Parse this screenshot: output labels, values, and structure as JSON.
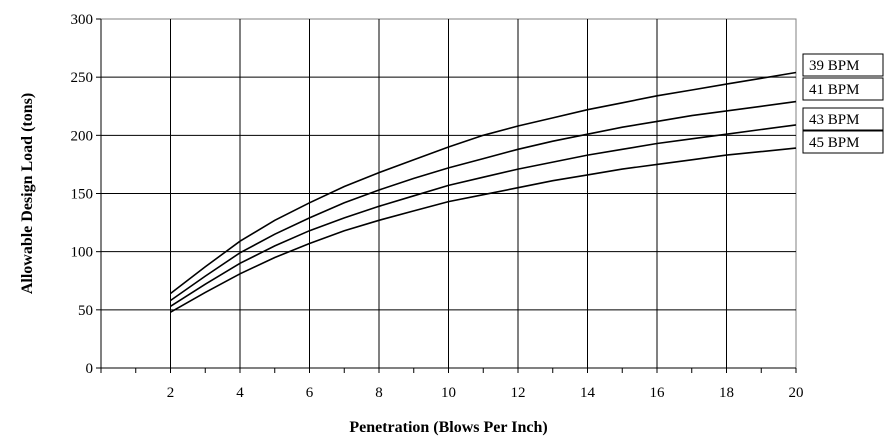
{
  "chart_data": {
    "type": "line",
    "xlabel": "Penetration (Blows Per Inch)",
    "ylabel": "Allowable Design Load (tons)",
    "xlim": [
      0,
      20
    ],
    "ylim": [
      0,
      300
    ],
    "xticks": [
      2,
      4,
      6,
      8,
      10,
      12,
      14,
      16,
      18,
      20
    ],
    "yticks": [
      0,
      50,
      100,
      150,
      200,
      250,
      300
    ],
    "grid": true,
    "legend": "right",
    "x": [
      2,
      3,
      4,
      5,
      6,
      7,
      8,
      9,
      10,
      11,
      12,
      13,
      14,
      15,
      16,
      17,
      18,
      19,
      20
    ],
    "series": [
      {
        "name": "39 BPM",
        "values": [
          64,
          87,
          109,
          127,
          142,
          156,
          168,
          179,
          190,
          200,
          208,
          215,
          222,
          228,
          234,
          239,
          244,
          249,
          254
        ]
      },
      {
        "name": "41 BPM",
        "values": [
          58,
          79,
          99,
          115,
          129,
          142,
          153,
          163,
          172,
          180,
          188,
          195,
          201,
          207,
          212,
          217,
          221,
          225,
          229
        ]
      },
      {
        "name": "43 BPM",
        "values": [
          53,
          72,
          90,
          105,
          118,
          129,
          139,
          148,
          157,
          164,
          171,
          177,
          183,
          188,
          193,
          197,
          201,
          205,
          209
        ]
      },
      {
        "name": "45 BPM",
        "values": [
          48,
          65,
          81,
          95,
          107,
          118,
          127,
          135,
          143,
          149,
          155,
          161,
          166,
          171,
          175,
          179,
          183,
          186,
          189
        ]
      }
    ]
  }
}
